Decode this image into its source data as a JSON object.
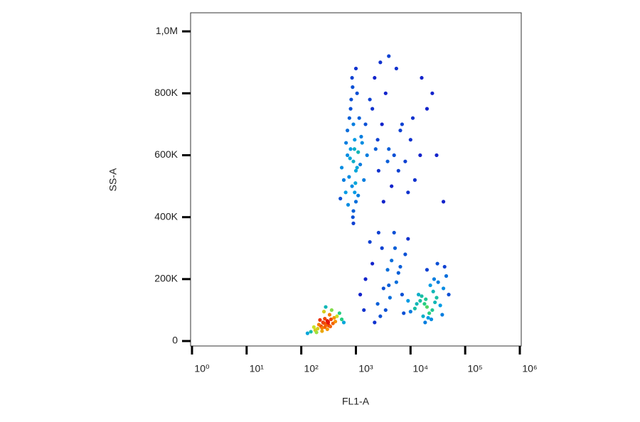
{
  "chart_data": {
    "type": "scatter",
    "x_label": "FL1-A",
    "y_label": "SS-A",
    "xscale": "log",
    "grid": false,
    "xlim": [
      1,
      1000000
    ],
    "xticks": [
      {
        "value": 1,
        "label": "10⁰"
      },
      {
        "value": 10,
        "label": "10¹"
      },
      {
        "value": 100,
        "label": "10²"
      },
      {
        "value": 1000,
        "label": "10³"
      },
      {
        "value": 10000,
        "label": "10⁴"
      },
      {
        "value": 100000,
        "label": "10⁵"
      },
      {
        "value": 1000000,
        "label": "10⁶"
      }
    ],
    "ylim": [
      -16000,
      1060000
    ],
    "yticks": [
      0,
      {
        "value": 200000,
        "label": "200K"
      },
      {
        "value": 400000,
        "label": "400K"
      },
      {
        "value": 600000,
        "label": "600K"
      },
      {
        "value": 800000,
        "label": "800K"
      },
      {
        "value": 1000000,
        "label": "1,0M"
      }
    ],
    "x": [
      280,
      250,
      320,
      300,
      230,
      350,
      270,
      200,
      400,
      260,
      310,
      290,
      180,
      450,
      240,
      330,
      220,
      380,
      150,
      500,
      270,
      300,
      260,
      340,
      210,
      420,
      190,
      360,
      550,
      130,
      280,
      310,
      240,
      600,
      170,
      900,
      800,
      1000,
      700,
      850,
      950,
      750,
      1100,
      650,
      900,
      1200,
      600,
      800,
      1000,
      1300,
      900,
      700,
      1050,
      550,
      850,
      950,
      780,
      1150,
      1400,
      880,
      720,
      1000,
      820,
      1250,
      660,
      980,
      900,
      1600,
      760,
      1100,
      520,
      940,
      1050,
      870,
      1500,
      2500,
      3000,
      4000,
      5000,
      2000,
      6000,
      8000,
      3500,
      10000,
      2800,
      4500,
      15000,
      2200,
      7000,
      20000,
      3200,
      12000,
      5500,
      25000,
      9000,
      1800,
      4000,
      30000,
      6500,
      2600,
      40000,
      3800,
      11000,
      16000,
      2300,
      20000,
      18000,
      25000,
      15000,
      22000,
      30000,
      12000,
      28000,
      17000,
      35000,
      14000,
      24000,
      40000,
      19000,
      10000,
      26000,
      21000,
      32000,
      16000,
      45000,
      23000,
      13000,
      38000,
      27000,
      9000,
      50000,
      20000,
      31000,
      18500,
      42000,
      1500,
      2000,
      3000,
      4000,
      5000,
      6000,
      7000,
      8000,
      2500,
      3500,
      4500,
      1200,
      9000,
      2800,
      5500,
      1800,
      6500,
      3200,
      7500,
      2200,
      4200,
      1400,
      5200,
      3800,
      2600
    ],
    "values": [
      55000,
      60000,
      50000,
      65000,
      48000,
      70000,
      45000,
      40000,
      75000,
      58000,
      62000,
      52000,
      35000,
      80000,
      42000,
      85000,
      68000,
      57000,
      30000,
      90000,
      72000,
      38000,
      95000,
      47000,
      53000,
      63000,
      28000,
      100000,
      70000,
      25000,
      110000,
      59000,
      32000,
      60000,
      45000,
      580000,
      620000,
      550000,
      600000,
      500000,
      650000,
      530000,
      610000,
      480000,
      700000,
      570000,
      520000,
      750000,
      450000,
      640000,
      420000,
      680000,
      800000,
      560000,
      850000,
      480000,
      590000,
      720000,
      520000,
      400000,
      440000,
      880000,
      780000,
      660000,
      640000,
      510000,
      380000,
      600000,
      720000,
      470000,
      460000,
      620000,
      560000,
      820000,
      700000,
      650000,
      700000,
      620000,
      600000,
      750000,
      550000,
      580000,
      800000,
      650000,
      900000,
      500000,
      600000,
      850000,
      700000,
      750000,
      450000,
      520000,
      880000,
      800000,
      480000,
      780000,
      920000,
      600000,
      680000,
      550000,
      450000,
      580000,
      720000,
      850000,
      620000,
      110000,
      120000,
      100000,
      130000,
      90000,
      140000,
      105000,
      125000,
      80000,
      115000,
      150000,
      70000,
      170000,
      135000,
      95000,
      160000,
      75000,
      190000,
      145000,
      210000,
      180000,
      120000,
      85000,
      200000,
      130000,
      150000,
      230000,
      250000,
      60000,
      240000,
      200000,
      250000,
      300000,
      180000,
      350000,
      220000,
      150000,
      280000,
      120000,
      100000,
      260000,
      150000,
      330000,
      80000,
      190000,
      320000,
      240000,
      170000,
      90000,
      60000,
      140000,
      100000,
      300000,
      230000,
      350000
    ]
  }
}
